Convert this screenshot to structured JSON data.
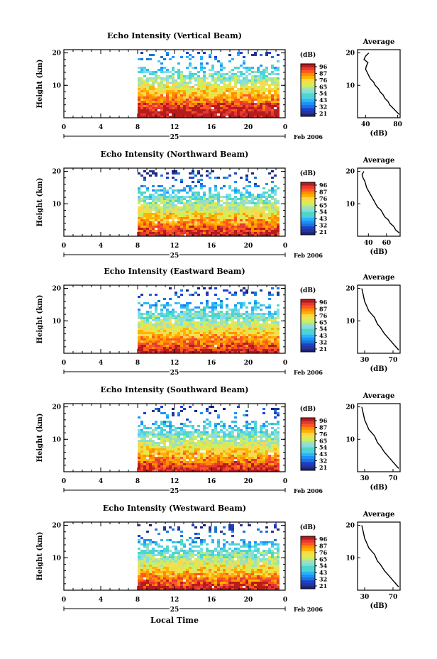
{
  "chart_data": {
    "type": "heatmap",
    "figure": {
      "xlabel": "Local Time",
      "colorbar_label": "(dB)",
      "colorbar_ticks": [
        "96",
        "87",
        "76",
        "65",
        "54",
        "43",
        "32",
        "21"
      ],
      "colorbar_colors": [
        "#1a237e",
        "#283593",
        "#1e3fd0",
        "#1976d2",
        "#1e90ff",
        "#29b6f6",
        "#4dd0e1",
        "#4dd9c2",
        "#80deea",
        "#a5e0b0",
        "#c6ef6a",
        "#e6e84a",
        "#ffd54f",
        "#ffb300",
        "#ff8f00",
        "#ff5722",
        "#e53935",
        "#b71c1c"
      ],
      "date_label": "Feb 2006",
      "day_label": "25",
      "profile_title": "Average",
      "profile_xlabel": "(dB)",
      "ylabel": "Height (km)",
      "yticks": [
        "20",
        "10"
      ],
      "xticks": [
        "0",
        "4",
        "8",
        "12",
        "16",
        "20",
        "0"
      ]
    },
    "panels": [
      {
        "title": "Echo Intensity (Vertical Beam)",
        "data_start_hour": 8,
        "profile_xticks": [
          "40",
          "80"
        ],
        "profile_xlim": [
          30,
          83
        ],
        "profile_height_km": [
          1,
          2,
          3,
          4,
          5,
          6,
          7,
          8,
          9,
          10,
          11,
          12,
          13,
          14,
          15,
          16,
          17,
          18,
          19,
          20
        ],
        "profile_db": [
          82,
          78,
          74,
          70,
          68,
          64,
          62,
          58,
          56,
          52,
          50,
          46,
          44,
          42,
          40,
          41,
          43,
          38,
          40,
          44
        ]
      },
      {
        "title": "Echo Intensity (Northward Beam)",
        "data_start_hour": 8,
        "profile_xticks": [
          "40",
          "60"
        ],
        "profile_xlim": [
          28,
          75
        ],
        "profile_height_km": [
          1,
          2,
          3,
          4,
          5,
          6,
          7,
          8,
          9,
          10,
          11,
          12,
          13,
          14,
          15,
          16,
          17,
          18,
          19,
          20
        ],
        "profile_db": [
          74,
          70,
          68,
          64,
          62,
          58,
          56,
          54,
          50,
          48,
          46,
          44,
          42,
          40,
          38,
          37,
          36,
          34,
          33,
          35
        ]
      },
      {
        "title": "Echo Intensity (Eastward Beam)",
        "data_start_hour": 8,
        "profile_xticks": [
          "30",
          "70"
        ],
        "profile_xlim": [
          20,
          80
        ],
        "profile_height_km": [
          1,
          2,
          3,
          4,
          5,
          6,
          7,
          8,
          9,
          10,
          11,
          12,
          13,
          14,
          15,
          16,
          17,
          18,
          19,
          20
        ],
        "profile_db": [
          78,
          74,
          70,
          66,
          62,
          58,
          55,
          52,
          48,
          46,
          44,
          40,
          36,
          34,
          32,
          30,
          29,
          28,
          27,
          26
        ]
      },
      {
        "title": "Echo Intensity (Southward Beam)",
        "data_start_hour": 8,
        "profile_xticks": [
          "30",
          "70"
        ],
        "profile_xlim": [
          20,
          80
        ],
        "profile_height_km": [
          1,
          2,
          3,
          4,
          5,
          6,
          7,
          8,
          9,
          10,
          11,
          12,
          13,
          14,
          15,
          16,
          17,
          18,
          19,
          20
        ],
        "profile_db": [
          78,
          74,
          70,
          66,
          62,
          58,
          55,
          52,
          48,
          46,
          44,
          40,
          36,
          34,
          32,
          30,
          29,
          28,
          27,
          26
        ]
      },
      {
        "title": "Echo Intensity (Westward Beam)",
        "data_start_hour": 8,
        "profile_xticks": [
          "30",
          "70"
        ],
        "profile_xlim": [
          20,
          80
        ],
        "profile_height_km": [
          1,
          2,
          3,
          4,
          5,
          6,
          7,
          8,
          9,
          10,
          11,
          12,
          13,
          14,
          15,
          16,
          17,
          18,
          19,
          20
        ],
        "profile_db": [
          78,
          74,
          70,
          66,
          62,
          58,
          55,
          52,
          48,
          46,
          44,
          40,
          36,
          34,
          32,
          30,
          29,
          28,
          27,
          26
        ]
      }
    ]
  }
}
